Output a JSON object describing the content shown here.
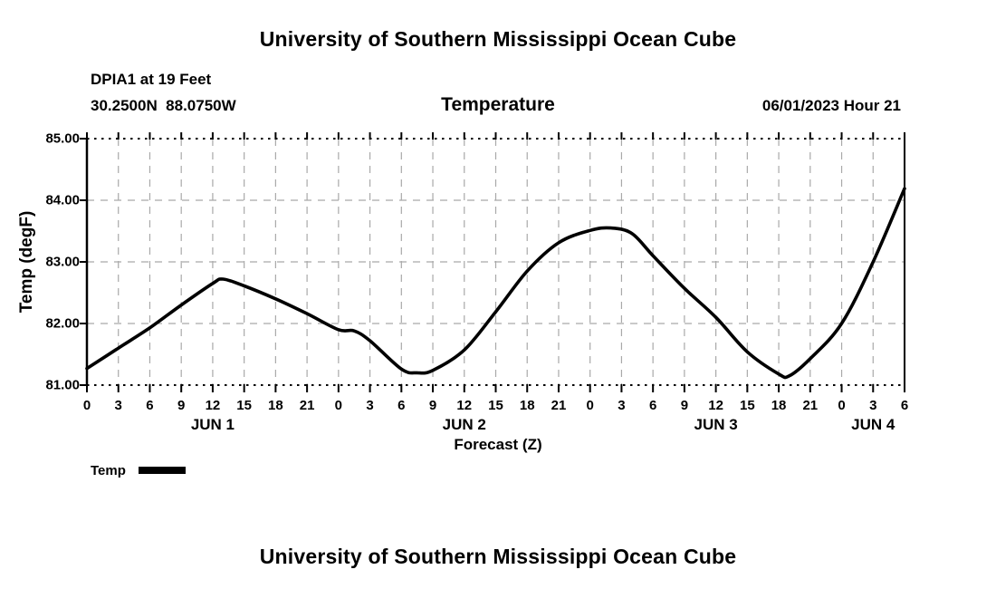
{
  "page": {
    "top_title": "University of Southern Mississippi Ocean Cube",
    "bottom_title": "University of Southern Mississippi Ocean Cube"
  },
  "header": {
    "station": "DPIA1 at 19 Feet",
    "coordinates": "30.2500N  88.0750W",
    "chart_title": "Temperature",
    "datetime": "06/01/2023 Hour 21"
  },
  "legend": {
    "label": "Temp",
    "swatch_color": "#000000"
  },
  "chart_data": {
    "type": "line",
    "title": "Temperature",
    "xlabel": "Forecast (Z)",
    "ylabel": "Temp (degF)",
    "ylim": [
      81.0,
      85.0
    ],
    "xlim_hours": [
      0,
      78
    ],
    "grid": true,
    "legend_position": "below-left",
    "colors": {
      "line": "#000000",
      "grid": "#a9a9a9",
      "axis": "#000000"
    },
    "y_ticks": [
      {
        "value": 81.0,
        "label": "81.00"
      },
      {
        "value": 82.0,
        "label": "82.00"
      },
      {
        "value": 83.0,
        "label": "83.00"
      },
      {
        "value": 84.0,
        "label": "84.00"
      },
      {
        "value": 85.0,
        "label": "85.00"
      }
    ],
    "x_ticks": [
      {
        "hour": 0,
        "label": "0"
      },
      {
        "hour": 3,
        "label": "3"
      },
      {
        "hour": 6,
        "label": "6"
      },
      {
        "hour": 9,
        "label": "9"
      },
      {
        "hour": 12,
        "label": "12"
      },
      {
        "hour": 15,
        "label": "15"
      },
      {
        "hour": 18,
        "label": "18"
      },
      {
        "hour": 21,
        "label": "21"
      },
      {
        "hour": 24,
        "label": "0"
      },
      {
        "hour": 27,
        "label": "3"
      },
      {
        "hour": 30,
        "label": "6"
      },
      {
        "hour": 33,
        "label": "9"
      },
      {
        "hour": 36,
        "label": "12"
      },
      {
        "hour": 39,
        "label": "15"
      },
      {
        "hour": 42,
        "label": "18"
      },
      {
        "hour": 45,
        "label": "21"
      },
      {
        "hour": 48,
        "label": "0"
      },
      {
        "hour": 51,
        "label": "3"
      },
      {
        "hour": 54,
        "label": "6"
      },
      {
        "hour": 57,
        "label": "9"
      },
      {
        "hour": 60,
        "label": "12"
      },
      {
        "hour": 63,
        "label": "15"
      },
      {
        "hour": 66,
        "label": "18"
      },
      {
        "hour": 69,
        "label": "21"
      },
      {
        "hour": 72,
        "label": "0"
      },
      {
        "hour": 75,
        "label": "3"
      },
      {
        "hour": 78,
        "label": "6"
      }
    ],
    "day_labels": [
      {
        "hour": 12,
        "label": "JUN 1"
      },
      {
        "hour": 36,
        "label": "JUN 2"
      },
      {
        "hour": 60,
        "label": "JUN 3"
      },
      {
        "hour": 75,
        "label": "JUN 4"
      }
    ],
    "series": [
      {
        "name": "Temp",
        "points": [
          [
            0,
            81.27
          ],
          [
            3,
            81.6
          ],
          [
            6,
            81.93
          ],
          [
            9,
            82.3
          ],
          [
            12,
            82.65
          ],
          [
            13,
            82.72
          ],
          [
            15,
            82.61
          ],
          [
            18,
            82.4
          ],
          [
            21,
            82.16
          ],
          [
            24,
            81.9
          ],
          [
            25.5,
            81.88
          ],
          [
            27,
            81.72
          ],
          [
            30,
            81.26
          ],
          [
            31.5,
            81.2
          ],
          [
            33,
            81.24
          ],
          [
            36,
            81.57
          ],
          [
            39,
            82.19
          ],
          [
            42,
            82.85
          ],
          [
            45,
            83.31
          ],
          [
            48,
            83.51
          ],
          [
            50,
            83.55
          ],
          [
            52,
            83.46
          ],
          [
            54,
            83.1
          ],
          [
            57,
            82.57
          ],
          [
            60,
            82.1
          ],
          [
            63,
            81.54
          ],
          [
            66,
            81.18
          ],
          [
            67,
            81.15
          ],
          [
            69,
            81.43
          ],
          [
            72,
            82.0
          ],
          [
            75,
            83.0
          ],
          [
            78,
            84.19
          ]
        ]
      }
    ]
  }
}
